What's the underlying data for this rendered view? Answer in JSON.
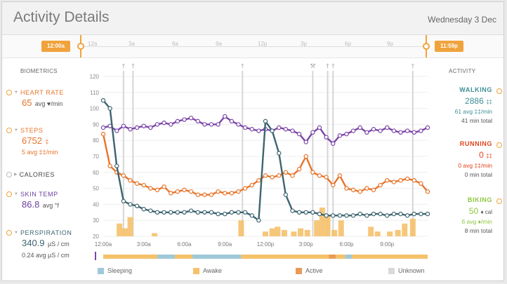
{
  "header": {
    "title": "Activity Details",
    "date": "Wednesday 3 Dec"
  },
  "timeline": {
    "start_label": "12:00a",
    "end_label": "11:59p",
    "ticks": [
      "12a",
      "3a",
      "6a",
      "9a",
      "12p",
      "3p",
      "6p",
      "9p"
    ]
  },
  "biometrics": {
    "title": "BIOMETRICS",
    "heart_rate": {
      "label": "HEART RATE",
      "value": "65",
      "unit": "avg ♥/min",
      "color": "#e8742a"
    },
    "steps": {
      "label": "STEPS",
      "value": "6752",
      "value_icon": "‡",
      "sub": "5 avg ‡‡/min",
      "color": "#e8742a"
    },
    "calories": {
      "label": "CALORIES"
    },
    "skin_temp": {
      "label": "SKIN TEMP",
      "value": "86.8",
      "unit": "avg °f",
      "color": "#6b3fa0"
    },
    "perspiration": {
      "label": "PERSPIRATION",
      "value": "340.9",
      "unit": "µS / cm",
      "sub": "0.24 avg µS / cm",
      "color": "#3d6470"
    }
  },
  "activity": {
    "title": "ACTIVITY",
    "walking": {
      "label": "WALKING",
      "value": "2886",
      "value_icon": "‡‡",
      "avg": "61 avg ‡‡/min",
      "total": "41 min total",
      "color": "#3d8e96"
    },
    "running": {
      "label": "RUNNING",
      "value": "0",
      "value_icon": "‡‡",
      "avg": "0 avg ‡‡/min",
      "total": "0 min total",
      "color": "#e0421b"
    },
    "biking": {
      "label": "BIKING",
      "value": "50",
      "value_icon": "♦ cal",
      "avg": "6 avg ♦/min",
      "total": "8 min total",
      "color": "#8dc63f"
    }
  },
  "legend": {
    "sleeping": "Sleeping",
    "awake": "Awake",
    "active": "Active",
    "unknown": "Unknown"
  },
  "colors": {
    "orange": "#e8742a",
    "purple": "#7b45a8",
    "teal": "#3d6470",
    "accent": "#f0a33c",
    "sleeping": "#9ec9d8",
    "awake": "#f5c16b",
    "active": "#ea9a55",
    "unknown": "#d9d9d9"
  },
  "chart_data": {
    "type": "line",
    "x": [
      0,
      0.5,
      1,
      1.5,
      2,
      2.5,
      3,
      3.5,
      4,
      4.5,
      5,
      5.5,
      6,
      6.5,
      7,
      7.5,
      8,
      8.5,
      9,
      9.5,
      10,
      10.5,
      11,
      11.5,
      12,
      12.5,
      13,
      13.5,
      14,
      14.5,
      15,
      15.5,
      16,
      16.5,
      17,
      17.5,
      18,
      18.5,
      19,
      19.5,
      20,
      20.5,
      21,
      21.5,
      22,
      22.5,
      23,
      23.5,
      24
    ],
    "x_tick_labels": [
      "12:00a",
      "3:00a",
      "6:00a",
      "9:00a",
      "12:00p",
      "3:00p",
      "6:00p",
      "9:00p"
    ],
    "x_ticks": [
      0,
      3,
      6,
      9,
      12,
      15,
      18,
      21
    ],
    "y_ticks": [
      20,
      30,
      40,
      50,
      60,
      70,
      80,
      90,
      100,
      110,
      120
    ],
    "ylim": [
      20,
      120
    ],
    "series": [
      {
        "values": [
          84,
          64,
          60,
          58,
          55,
          53,
          52,
          50,
          49,
          51,
          47,
          48,
          49,
          48,
          46,
          46,
          46,
          48,
          47,
          47,
          48,
          50,
          52,
          55,
          58,
          57,
          58,
          60,
          58,
          62,
          70,
          60,
          58,
          57,
          52,
          58,
          50,
          49,
          48,
          50,
          49,
          52,
          55,
          54,
          55,
          56,
          55,
          53,
          48
        ]
      },
      {
        "values": [
          88,
          89,
          86,
          89,
          87,
          88,
          89,
          88,
          90,
          91,
          90,
          92,
          93,
          94,
          92,
          90,
          90,
          90,
          95,
          92,
          90,
          88,
          87,
          86,
          87,
          86,
          88,
          87,
          86,
          84,
          79,
          85,
          88,
          82,
          78,
          83,
          84,
          86,
          88,
          85,
          87,
          86,
          88,
          86,
          85,
          86,
          85,
          86,
          88
        ]
      },
      {
        "values": [
          105,
          100,
          64,
          42,
          40,
          39,
          37,
          36,
          35,
          35,
          35,
          35,
          35,
          36,
          35,
          35,
          35,
          34,
          34,
          35,
          35,
          35,
          33,
          30,
          92,
          86,
          72,
          46,
          36,
          35,
          35,
          35,
          34,
          33,
          33,
          33,
          33,
          33,
          34,
          33,
          34,
          34,
          33,
          34,
          34,
          33,
          34,
          34,
          34
        ]
      }
    ],
    "steps_bars": [
      {
        "x": 1.2,
        "v": 8
      },
      {
        "x": 1.6,
        "v": 5
      },
      {
        "x": 2.0,
        "v": 12
      },
      {
        "x": 3.8,
        "v": 2
      },
      {
        "x": 10.2,
        "v": 10
      },
      {
        "x": 12.0,
        "v": 3
      },
      {
        "x": 12.5,
        "v": 5
      },
      {
        "x": 12.9,
        "v": 6
      },
      {
        "x": 13.4,
        "v": 4
      },
      {
        "x": 14.1,
        "v": 3
      },
      {
        "x": 14.6,
        "v": 5
      },
      {
        "x": 15.1,
        "v": 4
      },
      {
        "x": 15.8,
        "v": 10
      },
      {
        "x": 16.2,
        "v": 18
      },
      {
        "x": 16.6,
        "v": 13
      },
      {
        "x": 17.1,
        "v": 4
      },
      {
        "x": 17.6,
        "v": 10
      },
      {
        "x": 19.8,
        "v": 6
      },
      {
        "x": 20.3,
        "v": 3
      },
      {
        "x": 21.2,
        "v": 3
      },
      {
        "x": 21.8,
        "v": 4
      },
      {
        "x": 22.3,
        "v": 8
      },
      {
        "x": 22.9,
        "v": 11
      }
    ],
    "activity_band": [
      {
        "from": 0,
        "to": 4,
        "state": "awake"
      },
      {
        "from": 4,
        "to": 5.3,
        "state": "sleeping"
      },
      {
        "from": 5.3,
        "to": 6.6,
        "state": "awake"
      },
      {
        "from": 6.6,
        "to": 10.2,
        "state": "sleeping"
      },
      {
        "from": 10.2,
        "to": 16.7,
        "state": "awake"
      },
      {
        "from": 16.7,
        "to": 17.2,
        "state": "active"
      },
      {
        "from": 17.2,
        "to": 17.9,
        "state": "awake"
      },
      {
        "from": 17.9,
        "to": 18.4,
        "state": "sleeping"
      },
      {
        "from": 18.4,
        "to": 24,
        "state": "awake"
      }
    ],
    "event_markers": [
      {
        "x": 1.5,
        "icon": "walking"
      },
      {
        "x": 2.2,
        "icon": "walking"
      },
      {
        "x": 10.3,
        "icon": "walking"
      },
      {
        "x": 15.5,
        "icon": "biking"
      },
      {
        "x": 16.6,
        "icon": "walking"
      },
      {
        "x": 17.0,
        "icon": "walking"
      },
      {
        "x": 22.9,
        "icon": "walking"
      }
    ]
  }
}
